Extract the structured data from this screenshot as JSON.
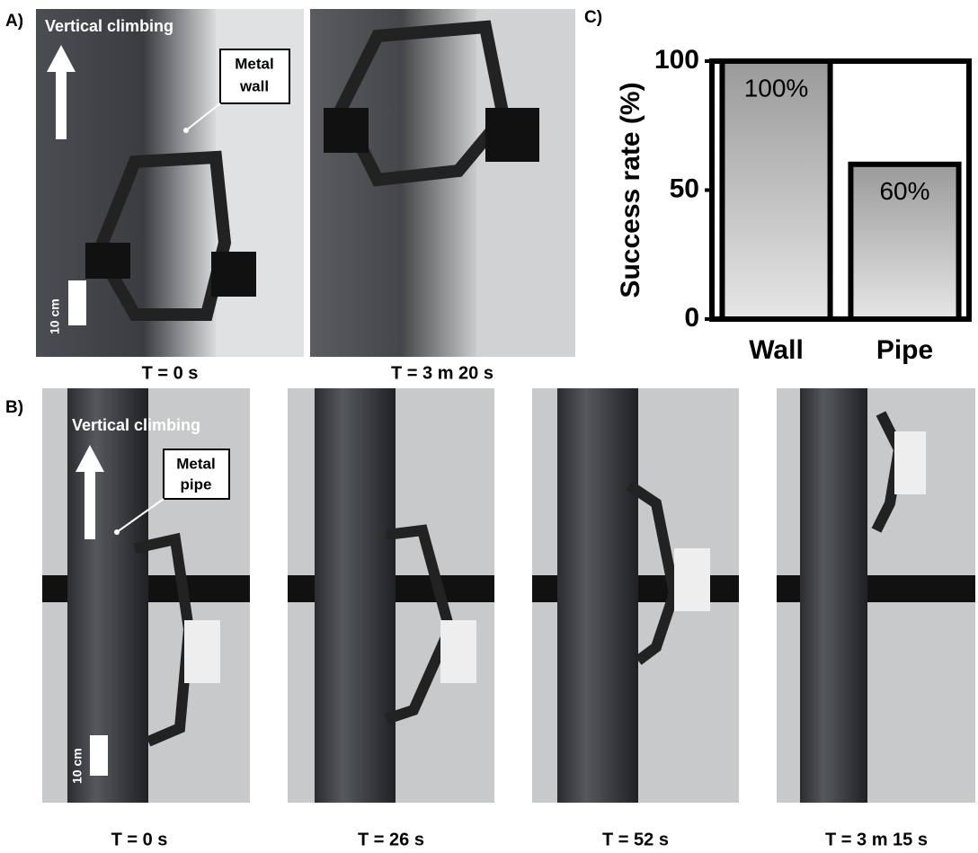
{
  "panels": {
    "a": {
      "label": "A)",
      "annotation": "Vertical climbing",
      "box_label": [
        "Metal",
        "wall"
      ],
      "scale_label": "10 cm",
      "captions": [
        "T = 0 s",
        "T = 3 m 20 s"
      ]
    },
    "b": {
      "label": "B)",
      "annotation": "Vertical climbing",
      "box_label": [
        "Metal",
        "pipe"
      ],
      "scale_label": "10 cm",
      "captions": [
        "T = 0 s",
        "T = 26 s",
        "T = 52 s",
        "T = 3 m 15 s"
      ]
    },
    "c": {
      "label": "C)"
    }
  },
  "chart_data": {
    "type": "bar",
    "ylabel": "Success rate (%)",
    "categories": [
      "Wall",
      "Pipe"
    ],
    "values": [
      100,
      60
    ],
    "value_labels": [
      "100%",
      "60%"
    ],
    "ylim": [
      0,
      100
    ],
    "yticks": [
      0,
      50,
      100
    ],
    "color": "#a9a9a9"
  }
}
